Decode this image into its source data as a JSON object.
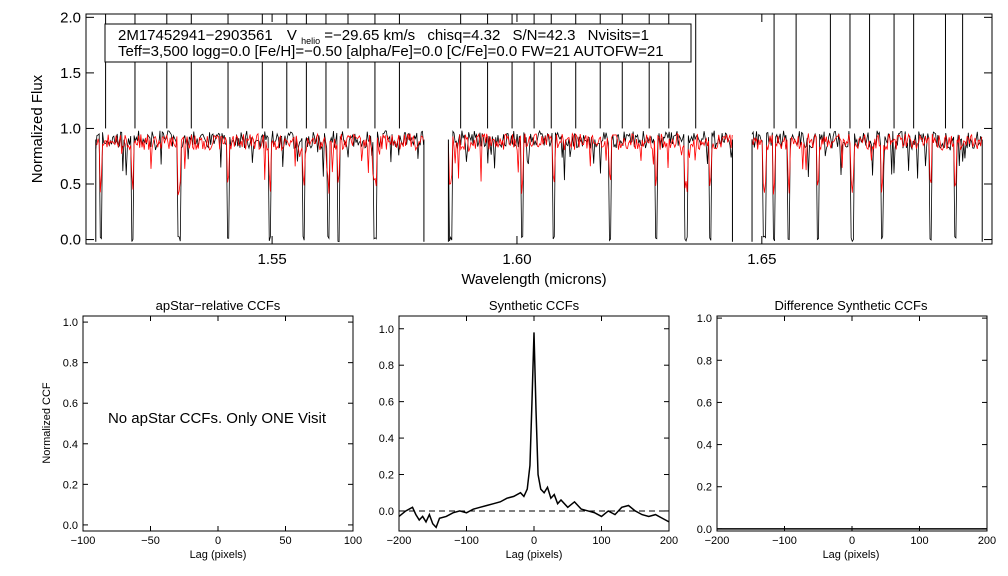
{
  "chart_data": [
    {
      "type": "line",
      "id": "spectrum",
      "xlabel": "Wavelength (microns)",
      "ylabel": "Normalized Flux",
      "xlim": [
        1.512,
        1.697
      ],
      "ylim": [
        -0.04,
        2.03
      ],
      "xticks": [
        "1.55",
        "1.60",
        "1.65"
      ],
      "xtick_values": [
        1.55,
        1.6,
        1.65
      ],
      "yticks": [
        "0.0",
        "0.5",
        "1.0",
        "1.5",
        "2.0"
      ],
      "ytick_values": [
        0.0,
        0.5,
        1.0,
        1.5,
        2.0
      ],
      "chips": [
        [
          1.514,
          1.581
        ],
        [
          1.586,
          1.644
        ],
        [
          1.648,
          1.695
        ]
      ],
      "series": [
        {
          "name": "observed spectrum",
          "color": "#000000",
          "continuum": 0.9
        },
        {
          "name": "best-fit synthetic model",
          "color": "#ff0000",
          "continuum": 0.88
        }
      ],
      "spike_wavelengths": [
        1.516,
        1.522,
        1.5285,
        1.5335,
        1.541,
        1.548,
        1.553,
        1.557,
        1.561,
        1.5655,
        1.571,
        1.576,
        1.5885,
        1.594,
        1.599,
        1.6035,
        1.607,
        1.612,
        1.617,
        1.6215,
        1.627,
        1.631,
        1.6365,
        1.6525,
        1.657,
        1.664,
        1.668,
        1.672,
        1.677,
        1.681,
        1.6875,
        1.691
      ],
      "dip_wavelengths": [
        1.515,
        1.5215,
        1.531,
        1.541,
        1.5495,
        1.5565,
        1.5615,
        1.5635,
        1.571,
        1.5865,
        1.601,
        1.6075,
        1.619,
        1.6285,
        1.6345,
        1.6395,
        1.6505,
        1.6525,
        1.6555,
        1.6615,
        1.6685,
        1.6745,
        1.6845,
        1.6895
      ],
      "annotation": {
        "star_id": "2M17452941−2903561",
        "v_label": "V",
        "v_subscript": "helio",
        "v_value": "=−29.65 km/s",
        "chisq": "chisq=4.32",
        "snr": "S/N=42.3",
        "nvisits": "Nvisits=1",
        "line2": "Teff=3,500 logg=0.0 [Fe/H]=−0.50 [alpha/Fe]=0.0 [C/Fe]=0.0 FW=21 AUTOFW=21"
      }
    },
    {
      "type": "line",
      "id": "apstar_ccf",
      "title": "apStar−relative CCFs",
      "xlabel": "Lag (pixels)",
      "ylabel": "Normalized CCF",
      "xlim": [
        -100,
        100
      ],
      "ylim": [
        -0.03,
        1.03
      ],
      "xticks": [
        "−100",
        "−50",
        "0",
        "50",
        "100"
      ],
      "xtick_values": [
        -100,
        -50,
        0,
        50,
        100
      ],
      "yticks": [
        "0.0",
        "0.2",
        "0.4",
        "0.6",
        "0.8",
        "1.0"
      ],
      "ytick_values": [
        0.0,
        0.2,
        0.4,
        0.6,
        0.8,
        1.0
      ],
      "message": "No apStar CCFs.  Only ONE Visit",
      "series": []
    },
    {
      "type": "line",
      "id": "synthetic_ccf",
      "title": "Synthetic CCFs",
      "xlabel": "Lag (pixels)",
      "xlim": [
        -200,
        200
      ],
      "ylim": [
        -0.11,
        1.07
      ],
      "xticks": [
        "−200",
        "−100",
        "0",
        "100",
        "200"
      ],
      "xtick_values": [
        -200,
        -100,
        0,
        100,
        200
      ],
      "yticks": [
        "0.0",
        "0.2",
        "0.4",
        "0.6",
        "0.8",
        "1.0"
      ],
      "ytick_values": [
        0.0,
        0.2,
        0.4,
        0.6,
        0.8,
        1.0
      ],
      "series": [
        {
          "name": "synthetic CCF",
          "x": [
            -200,
            -190,
            -180,
            -175,
            -170,
            -165,
            -160,
            -155,
            -150,
            -145,
            -140,
            -130,
            -120,
            -110,
            -100,
            -90,
            -80,
            -70,
            -60,
            -50,
            -40,
            -30,
            -20,
            -15,
            -10,
            -6,
            -3,
            0,
            3,
            6,
            10,
            15,
            20,
            25,
            30,
            35,
            40,
            50,
            60,
            70,
            80,
            90,
            100,
            110,
            120,
            130,
            140,
            150,
            160,
            170,
            180,
            190,
            200
          ],
          "values": [
            -0.03,
            0.0,
            0.02,
            -0.02,
            -0.05,
            -0.03,
            -0.06,
            -0.02,
            -0.07,
            -0.09,
            -0.04,
            -0.03,
            -0.01,
            0.0,
            -0.01,
            0.01,
            0.02,
            0.03,
            0.04,
            0.05,
            0.07,
            0.08,
            0.1,
            0.08,
            0.12,
            0.25,
            0.6,
            0.98,
            0.55,
            0.2,
            0.12,
            0.1,
            0.13,
            0.07,
            0.09,
            0.04,
            0.06,
            0.02,
            0.05,
            0.01,
            0.0,
            -0.01,
            -0.03,
            0.0,
            -0.02,
            0.02,
            0.03,
            0.0,
            -0.02,
            -0.03,
            -0.02,
            -0.04,
            -0.06
          ]
        },
        {
          "name": "zero baseline",
          "style": "dashed",
          "x": [
            -200,
            200
          ],
          "values": [
            0,
            0
          ]
        }
      ]
    },
    {
      "type": "line",
      "id": "difference_ccf",
      "title": "Difference Synthetic CCFs",
      "xlabel": "Lag (pixels)",
      "xlim": [
        -200,
        200
      ],
      "ylim": [
        -0.01,
        1.01
      ],
      "xticks": [
        "−200",
        "−100",
        "0",
        "100",
        "200"
      ],
      "xtick_values": [
        -200,
        -100,
        0,
        100,
        200
      ],
      "yticks": [
        "0.0",
        "0.2",
        "0.4",
        "0.6",
        "0.8",
        "1.0"
      ],
      "ytick_values": [
        0.0,
        0.2,
        0.4,
        0.6,
        0.8,
        1.0
      ],
      "series": [
        {
          "name": "difference CCF",
          "x": [
            -200,
            200
          ],
          "values": [
            0,
            0
          ]
        }
      ]
    }
  ]
}
